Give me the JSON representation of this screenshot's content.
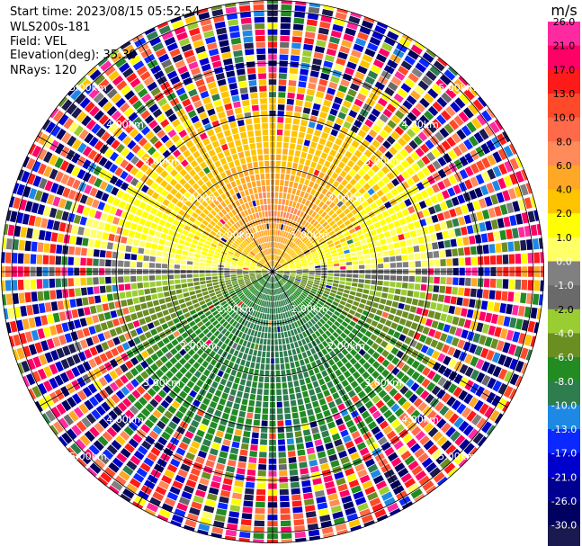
{
  "header": {
    "start_time": "Start time: 2023/08/15 05:52:54",
    "instrument": "WLS200s-181",
    "field": "Field: VEL",
    "elevation": "Elevation(deg): 35.30",
    "nrays": "NRays: 120"
  },
  "colorbar": {
    "unit": "m/s",
    "ticks": [
      "26.0",
      "21.0",
      "17.0",
      "13.0",
      "10.0",
      "8.0",
      "6.0",
      "4.0",
      "2.0",
      "1.0",
      "0.0",
      "-1.0",
      "-2.0",
      "-4.0",
      "-6.0",
      "-8.0",
      "-10.0",
      "-13.0",
      "-17.0",
      "-21.0",
      "-26.0",
      "-30.0"
    ],
    "colors": [
      "#ff2aa0",
      "#ff0066",
      "#ff1a1a",
      "#ff4a2a",
      "#ff6a4a",
      "#ff8a5a",
      "#ffa726",
      "#ffc400",
      "#ffff00",
      "#ffff66",
      "#808080",
      "#6a6a6a",
      "#9acd32",
      "#6b8e23",
      "#228b22",
      "#2e7d4f",
      "#1e88e5",
      "#0a28ff",
      "#0000cd",
      "#000090",
      "#000060",
      "#1a1a50"
    ]
  },
  "chart_data": {
    "type": "ppi",
    "field": "VEL",
    "unit": "m/s",
    "nrays": 120,
    "elevation_deg": 35.3,
    "range_rings_km": [
      1.0,
      2.0,
      3.0,
      4.0,
      5.0
    ],
    "ring_labels": [
      "1.00km",
      "2.00km",
      "3.00km",
      "4.00km",
      "5.00km"
    ],
    "azimuth_spokes_deg": [
      0,
      30,
      60,
      90,
      120,
      150,
      180,
      210,
      240,
      270,
      300,
      330
    ],
    "pattern": {
      "north_sector_velocity": 5.0,
      "south_sector_velocity": -6.0,
      "east_west_velocity": 0.0,
      "center_peak_north": 8.0,
      "center_peak_south": -7.0,
      "noise_begins_km": 2.6
    }
  }
}
